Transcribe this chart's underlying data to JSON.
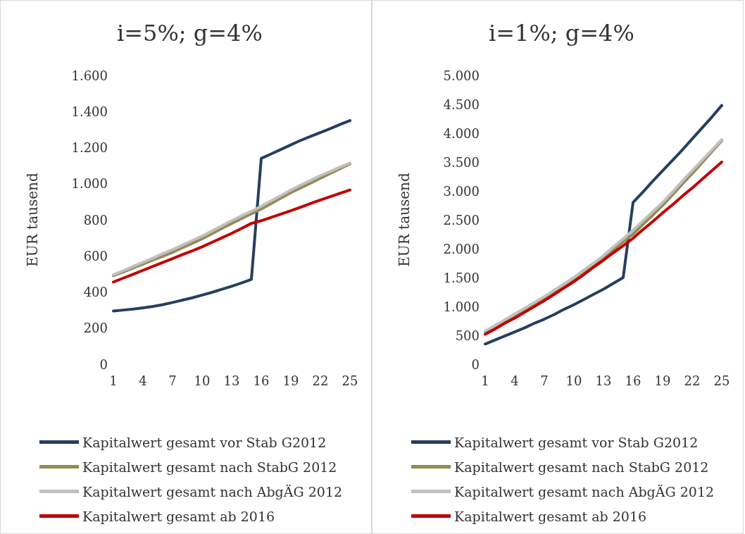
{
  "chart_data": [
    {
      "type": "line",
      "title": "i=5%; g=4%",
      "ylabel": "EUR tausend",
      "categories": [
        "1",
        null,
        null,
        "4",
        null,
        null,
        "7",
        null,
        null,
        "10",
        null,
        null,
        "13",
        null,
        null,
        "16",
        null,
        null,
        "19",
        null,
        null,
        "22",
        null,
        null,
        "25"
      ],
      "series": [
        {
          "name": "Kapitalwert gesamt vor Stab G2012",
          "color": "#243f60",
          "values": [
            295,
            300,
            305,
            312,
            320,
            330,
            342,
            355,
            368,
            383,
            398,
            415,
            432,
            450,
            470,
            1140,
            1165,
            1190,
            1215,
            1240,
            1262,
            1283,
            1305,
            1328,
            1350
          ]
        },
        {
          "name": "Kapitalwert gesamt nach StabG 2012",
          "color": "#948a54",
          "values": [
            490,
            511,
            533,
            555,
            577,
            598,
            620,
            645,
            670,
            695,
            723,
            752,
            780,
            807,
            833,
            860,
            890,
            920,
            950,
            977,
            1003,
            1030,
            1057,
            1083,
            1110
          ]
        },
        {
          "name": "Kapitalwert gesamt nach AbgÄG 2012",
          "color": "#c0c0c0",
          "values": [
            495,
            518,
            542,
            565,
            588,
            612,
            635,
            660,
            685,
            710,
            738,
            767,
            795,
            822,
            848,
            875,
            905,
            935,
            965,
            992,
            1018,
            1045,
            1068,
            1092,
            1115
          ]
        },
        {
          "name": "Kapitalwert gesamt ab 2016",
          "color": "#c00000",
          "values": [
            455,
            477,
            498,
            520,
            542,
            563,
            585,
            607,
            628,
            650,
            675,
            700,
            725,
            752,
            780,
            795,
            813,
            832,
            850,
            870,
            890,
            910,
            928,
            947,
            965
          ]
        }
      ],
      "ylim": [
        0,
        1600
      ],
      "yticks": [
        0,
        200,
        400,
        600,
        800,
        {
          "value": 1000,
          "label": "1.000"
        },
        {
          "value": 1200,
          "label": "1.200"
        },
        {
          "value": 1400,
          "label": "1.400"
        },
        {
          "value": 1600,
          "label": "1.600"
        }
      ],
      "grid": false,
      "legend": "bottom",
      "marker": "none",
      "line_style": "solid"
    },
    {
      "type": "line",
      "title": "i=1%; g=4%",
      "ylabel": "EUR tausend",
      "categories": [
        "1",
        null,
        null,
        "4",
        null,
        null,
        "7",
        null,
        null,
        "10",
        null,
        null,
        "13",
        null,
        null,
        "16",
        null,
        null,
        "19",
        null,
        null,
        "22",
        null,
        null,
        "25"
      ],
      "series": [
        {
          "name": "Kapitalwert gesamt vor Stab G2012",
          "color": "#243f60",
          "values": [
            350,
            420,
            490,
            560,
            630,
            710,
            780,
            860,
            950,
            1030,
            1120,
            1210,
            1300,
            1400,
            1500,
            2800,
            2980,
            3170,
            3350,
            3530,
            3710,
            3900,
            4090,
            4280,
            4480
          ]
        },
        {
          "name": "Kapitalwert gesamt nach StabG 2012",
          "color": "#948a54",
          "values": [
            560,
            660,
            750,
            850,
            950,
            1050,
            1150,
            1260,
            1360,
            1470,
            1600,
            1720,
            1850,
            1980,
            2120,
            2250,
            2420,
            2580,
            2750,
            2930,
            3120,
            3300,
            3490,
            3680,
            3870
          ]
        },
        {
          "name": "Kapitalwert gesamt nach AbgÄG 2012",
          "color": "#c0c0c0",
          "values": [
            570,
            670,
            770,
            870,
            970,
            1070,
            1170,
            1280,
            1390,
            1500,
            1630,
            1750,
            1880,
            2030,
            2170,
            2320,
            2480,
            2640,
            2800,
            2980,
            3170,
            3350,
            3530,
            3710,
            3890
          ]
        },
        {
          "name": "Kapitalwert gesamt ab 2016",
          "color": "#c00000",
          "values": [
            520,
            610,
            710,
            800,
            900,
            1000,
            1100,
            1210,
            1320,
            1430,
            1550,
            1680,
            1800,
            1930,
            2050,
            2180,
            2330,
            2470,
            2620,
            2760,
            2910,
            3050,
            3200,
            3350,
            3500
          ]
        }
      ],
      "ylim": [
        0,
        5000
      ],
      "yticks": [
        0,
        500,
        {
          "value": 1000,
          "label": "1.000"
        },
        {
          "value": 1500,
          "label": "1.500"
        },
        {
          "value": 2000,
          "label": "2.000"
        },
        {
          "value": 2500,
          "label": "2.500"
        },
        {
          "value": 3000,
          "label": "3.000"
        },
        {
          "value": 3500,
          "label": "3.500"
        },
        {
          "value": 4000,
          "label": "4.000"
        },
        {
          "value": 4500,
          "label": "4.500"
        },
        {
          "value": 5000,
          "label": "5.000"
        }
      ],
      "grid": false,
      "legend": "bottom",
      "marker": "none",
      "line_style": "solid"
    }
  ]
}
